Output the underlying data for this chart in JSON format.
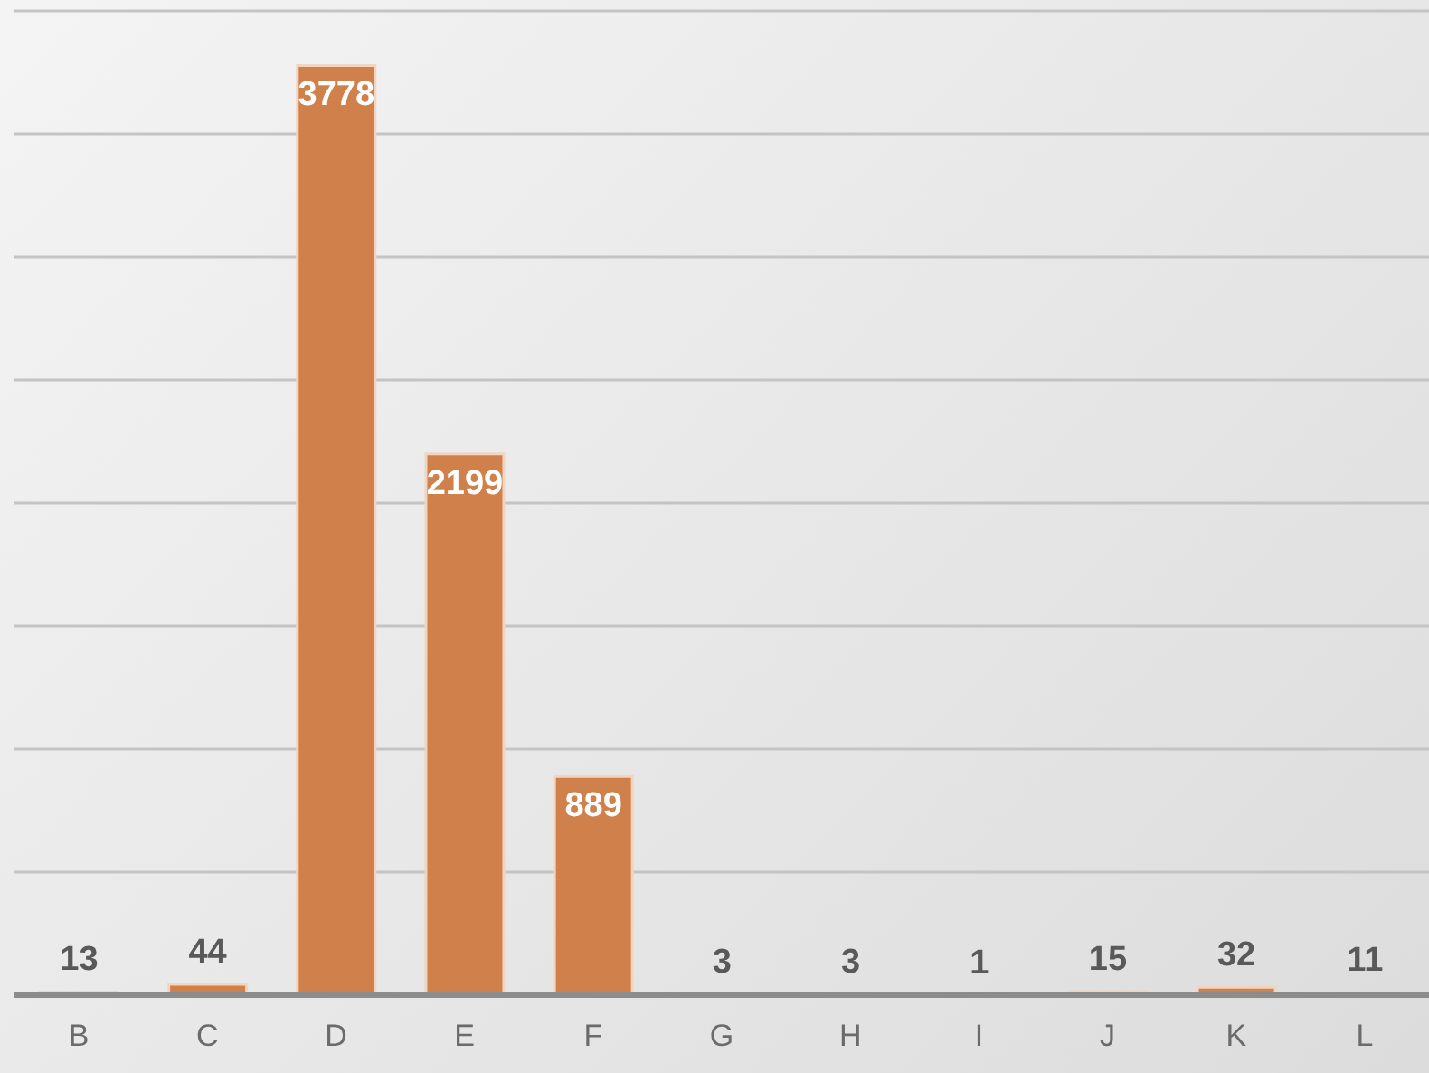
{
  "chart_data": {
    "type": "bar",
    "categories": [
      "B",
      "C",
      "D",
      "E",
      "F",
      "G",
      "H",
      "I",
      "J",
      "K",
      "L"
    ],
    "values": [
      13,
      44,
      3778,
      2199,
      889,
      3,
      3,
      1,
      15,
      32,
      11
    ],
    "color": "#d0804a",
    "data_labels": true,
    "grid": "y",
    "legend": false,
    "tick_labels": "x",
    "ylim": [
      0,
      4000
    ],
    "yticks": [
      {
        "value": 0,
        "label": null
      },
      {
        "value": 500,
        "label": null
      },
      {
        "value": 1000,
        "label": null
      },
      {
        "value": 1500,
        "label": null
      },
      {
        "value": 2000,
        "label": null
      },
      {
        "value": 2500,
        "label": null
      },
      {
        "value": 3000,
        "label": null
      },
      {
        "value": 3500,
        "label": null
      },
      {
        "value": 4000,
        "label": null
      }
    ]
  }
}
